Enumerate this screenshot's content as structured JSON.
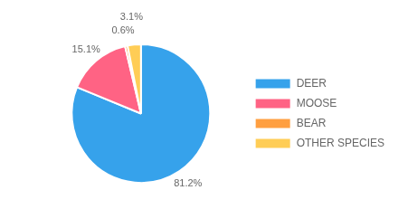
{
  "chart_data": {
    "type": "pie",
    "categories": [
      "DEER",
      "MOOSE",
      "BEAR",
      "OTHER SPECIES"
    ],
    "values": [
      81.2,
      15.1,
      0.6,
      3.1
    ],
    "value_labels": [
      "81.2%",
      "15.1%",
      "0.6%",
      "3.1%"
    ],
    "data_labels": true,
    "legend": "right"
  }
}
